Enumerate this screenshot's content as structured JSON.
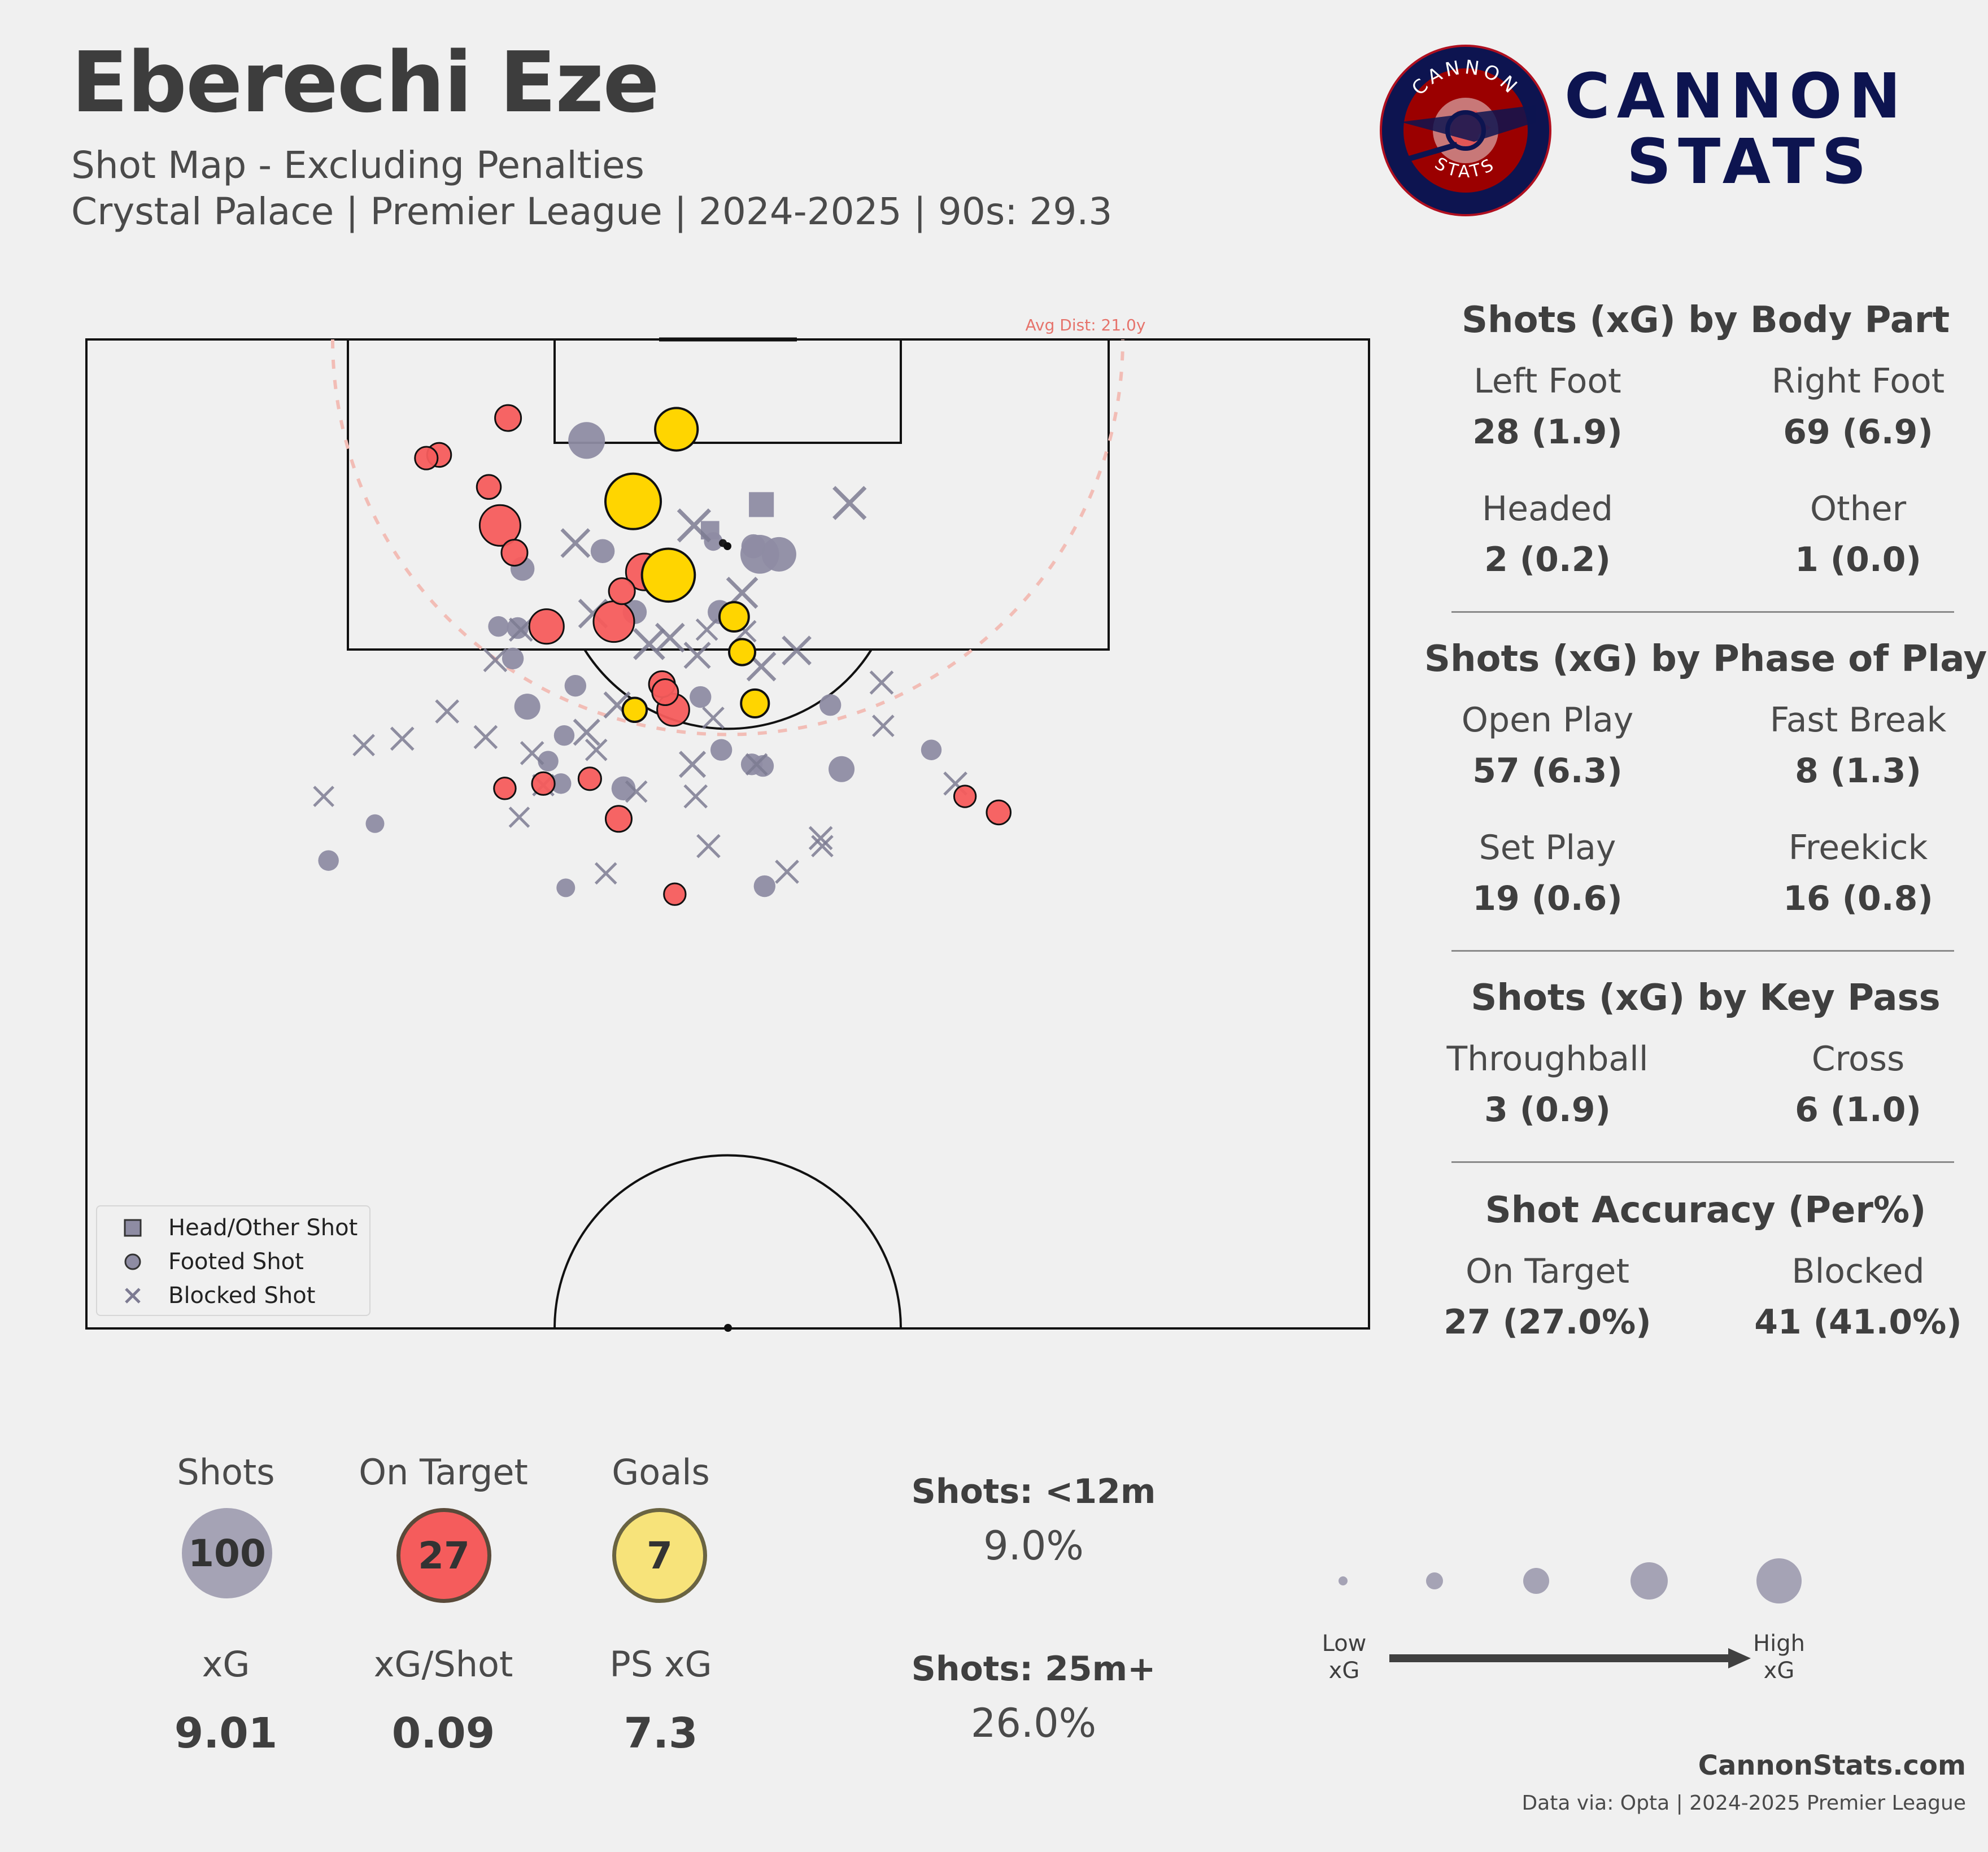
{
  "header": {
    "title": "Eberechi Eze",
    "subtitle": "Shot Map - Excluding Penalties",
    "info": "Crystal Palace | Premier League | 2024-2025 | 90s: 29.3"
  },
  "brand": {
    "logo_ring_top": "CANNON",
    "logo_ring_bottom": "STATS",
    "line1": "CANNON",
    "line2": "STATS"
  },
  "colors": {
    "background": "#f0f0f0",
    "shot": "#8e8ca3",
    "on_target": "#f55c5c",
    "goal": "#ffd500",
    "avg_dist": "#e6736b",
    "brand_navy": "#0d1450",
    "brand_red": "#9b0000"
  },
  "avg_dist_label": "Avg Dist: 21.0y",
  "legend": [
    {
      "label": "Head/Other Shot",
      "icon": "square-marker-icon"
    },
    {
      "label": "Footed Shot",
      "icon": "circle-marker-icon"
    },
    {
      "label": "Blocked Shot",
      "icon": "x-marker-icon"
    }
  ],
  "panels": [
    {
      "title": "Shots (xG) by Body Part",
      "items": [
        {
          "label": "Left Foot",
          "value": "28 (1.9)"
        },
        {
          "label": "Right Foot",
          "value": "69 (6.9)"
        },
        {
          "label": "Headed",
          "value": "2 (0.2)"
        },
        {
          "label": "Other",
          "value": "1 (0.0)"
        }
      ]
    },
    {
      "title": "Shots (xG) by Phase of Play",
      "items": [
        {
          "label": "Open Play",
          "value": "57 (6.3)"
        },
        {
          "label": "Fast Break",
          "value": "8 (1.3)"
        },
        {
          "label": "Set Play",
          "value": "19 (0.6)"
        },
        {
          "label": "Freekick",
          "value": "16 (0.8)"
        }
      ]
    },
    {
      "title": "Shots (xG) by Key Pass",
      "items": [
        {
          "label": "Throughball",
          "value": "3 (0.9)"
        },
        {
          "label": "Cross",
          "value": "6 (1.0)"
        }
      ]
    },
    {
      "title": "Shot Accuracy (Per%)",
      "items": [
        {
          "label": "On Target",
          "value": "27 (27.0%)"
        },
        {
          "label": "Blocked",
          "value": "41 (41.0%)"
        }
      ]
    }
  ],
  "bottom_stats": {
    "top": [
      {
        "label": "Shots",
        "value": "100",
        "color": "#a5a3b5"
      },
      {
        "label": "On Target",
        "value": "27",
        "color": "#f55c5c"
      },
      {
        "label": "Goals",
        "value": "7",
        "color": "#f7e37a"
      }
    ],
    "bottom": [
      {
        "label": "xG",
        "value": "9.01"
      },
      {
        "label": "xG/Shot",
        "value": "0.09"
      },
      {
        "label": "PS xG",
        "value": "7.3"
      }
    ]
  },
  "distance_stats": [
    {
      "label": "Shots: <12m",
      "value": "9.0%"
    },
    {
      "label": "Shots: 25m+",
      "value": "26.0%"
    }
  ],
  "size_legend": {
    "low": "Low\nxG",
    "high": "High\nxG"
  },
  "footer": {
    "site": "CannonStats.com",
    "source": "Data via: Opta | 2024-2025 Premier League"
  },
  "chart_data": {
    "type": "scatter",
    "description_units": "x = pitch width (0-80), y = distance from goal line (0-60), xg = expected goals",
    "avg_distance": 21.0,
    "shots": [
      {
        "x": 34.1,
        "y": 10.1,
        "xg": 0.18,
        "outcome": "goal",
        "body": "foot"
      },
      {
        "x": 36.8,
        "y": 5.6,
        "xg": 0.09,
        "outcome": "goal",
        "body": "foot"
      },
      {
        "x": 36.3,
        "y": 14.7,
        "xg": 0.16,
        "outcome": "goal",
        "body": "foot"
      },
      {
        "x": 40.4,
        "y": 17.3,
        "xg": 0.03,
        "outcome": "goal",
        "body": "foot"
      },
      {
        "x": 40.9,
        "y": 19.5,
        "xg": 0.02,
        "outcome": "goal",
        "body": "foot"
      },
      {
        "x": 41.7,
        "y": 22.7,
        "xg": 0.025,
        "outcome": "goal",
        "body": "foot"
      },
      {
        "x": 34.2,
        "y": 23.1,
        "xg": 0.015,
        "outcome": "goal",
        "body": "foot"
      },
      {
        "x": 26.3,
        "y": 4.9,
        "xg": 0.02,
        "outcome": "on_target",
        "body": "foot"
      },
      {
        "x": 22.0,
        "y": 7.2,
        "xg": 0.015,
        "outcome": "on_target",
        "body": "foot"
      },
      {
        "x": 21.2,
        "y": 7.4,
        "xg": 0.012,
        "outcome": "on_target",
        "body": "foot"
      },
      {
        "x": 25.1,
        "y": 9.2,
        "xg": 0.015,
        "outcome": "on_target",
        "body": "foot"
      },
      {
        "x": 25.8,
        "y": 11.6,
        "xg": 0.08,
        "outcome": "on_target",
        "body": "foot"
      },
      {
        "x": 26.7,
        "y": 13.3,
        "xg": 0.02,
        "outcome": "on_target",
        "body": "foot"
      },
      {
        "x": 34.8,
        "y": 14.5,
        "xg": 0.06,
        "outcome": "on_target",
        "body": "foot"
      },
      {
        "x": 33.4,
        "y": 15.7,
        "xg": 0.02,
        "outcome": "on_target",
        "body": "foot"
      },
      {
        "x": 32.9,
        "y": 17.6,
        "xg": 0.08,
        "outcome": "on_target",
        "body": "foot"
      },
      {
        "x": 28.7,
        "y": 17.9,
        "xg": 0.05,
        "outcome": "on_target",
        "body": "foot"
      },
      {
        "x": 35.9,
        "y": 21.5,
        "xg": 0.02,
        "outcome": "on_target",
        "body": "foot"
      },
      {
        "x": 36.1,
        "y": 22.0,
        "xg": 0.02,
        "outcome": "on_target",
        "body": "foot"
      },
      {
        "x": 36.6,
        "y": 23.1,
        "xg": 0.04,
        "outcome": "on_target",
        "body": "foot"
      },
      {
        "x": 31.4,
        "y": 27.4,
        "xg": 0.012,
        "outcome": "on_target",
        "body": "foot"
      },
      {
        "x": 28.5,
        "y": 27.7,
        "xg": 0.012,
        "outcome": "on_target",
        "body": "foot"
      },
      {
        "x": 26.1,
        "y": 28.0,
        "xg": 0.01,
        "outcome": "on_target",
        "body": "foot"
      },
      {
        "x": 33.2,
        "y": 29.9,
        "xg": 0.02,
        "outcome": "on_target",
        "body": "foot"
      },
      {
        "x": 36.7,
        "y": 34.6,
        "xg": 0.01,
        "outcome": "on_target",
        "body": "foot"
      },
      {
        "x": 54.8,
        "y": 28.5,
        "xg": 0.01,
        "outcome": "on_target",
        "body": "foot"
      },
      {
        "x": 56.9,
        "y": 29.5,
        "xg": 0.015,
        "outcome": "on_target",
        "body": "foot"
      },
      {
        "x": 31.2,
        "y": 6.3,
        "xg": 0.06,
        "outcome": "off_target",
        "body": "foot"
      },
      {
        "x": 42.0,
        "y": 13.4,
        "xg": 0.07,
        "outcome": "off_target",
        "body": "foot"
      },
      {
        "x": 43.2,
        "y": 13.4,
        "xg": 0.05,
        "outcome": "off_target",
        "body": "foot"
      },
      {
        "x": 32.2,
        "y": 13.2,
        "xg": 0.015,
        "outcome": "off_target",
        "body": "foot"
      },
      {
        "x": 27.2,
        "y": 14.3,
        "xg": 0.015,
        "outcome": "off_target",
        "body": "foot"
      },
      {
        "x": 34.2,
        "y": 17.0,
        "xg": 0.015,
        "outcome": "off_target",
        "body": "foot"
      },
      {
        "x": 39.5,
        "y": 17.0,
        "xg": 0.015,
        "outcome": "off_target",
        "body": "foot"
      },
      {
        "x": 26.9,
        "y": 18.0,
        "xg": 0.01,
        "outcome": "off_target",
        "body": "foot"
      },
      {
        "x": 26.6,
        "y": 19.9,
        "xg": 0.01,
        "outcome": "off_target",
        "body": "foot"
      },
      {
        "x": 27.5,
        "y": 22.9,
        "xg": 0.02,
        "outcome": "off_target",
        "body": "foot"
      },
      {
        "x": 38.3,
        "y": 22.3,
        "xg": 0.01,
        "outcome": "off_target",
        "body": "foot"
      },
      {
        "x": 46.4,
        "y": 22.8,
        "xg": 0.01,
        "outcome": "off_target",
        "body": "foot"
      },
      {
        "x": 28.8,
        "y": 26.3,
        "xg": 0.008,
        "outcome": "off_target",
        "body": "foot"
      },
      {
        "x": 39.6,
        "y": 25.6,
        "xg": 0.01,
        "outcome": "off_target",
        "body": "foot"
      },
      {
        "x": 41.5,
        "y": 26.5,
        "xg": 0.01,
        "outcome": "off_target",
        "body": "foot"
      },
      {
        "x": 47.1,
        "y": 26.8,
        "xg": 0.02,
        "outcome": "off_target",
        "body": "foot"
      },
      {
        "x": 52.7,
        "y": 25.6,
        "xg": 0.008,
        "outcome": "off_target",
        "body": "foot"
      },
      {
        "x": 33.5,
        "y": 28.0,
        "xg": 0.015,
        "outcome": "off_target",
        "body": "foot"
      },
      {
        "x": 18.0,
        "y": 30.2,
        "xg": 0.005,
        "outcome": "off_target",
        "body": "foot"
      },
      {
        "x": 15.1,
        "y": 32.5,
        "xg": 0.008,
        "outcome": "off_target",
        "body": "foot"
      },
      {
        "x": 29.9,
        "y": 34.2,
        "xg": 0.005,
        "outcome": "off_target",
        "body": "foot"
      },
      {
        "x": 42.3,
        "y": 34.1,
        "xg": 0.01,
        "outcome": "off_target",
        "body": "foot"
      },
      {
        "x": 29.8,
        "y": 24.7,
        "xg": 0.008,
        "outcome": "off_target",
        "body": "foot"
      },
      {
        "x": 30.5,
        "y": 21.6,
        "xg": 0.01,
        "outcome": "off_target",
        "body": "foot"
      },
      {
        "x": 25.7,
        "y": 17.9,
        "xg": 0.008,
        "outcome": "off_target",
        "body": "foot"
      },
      {
        "x": 29.6,
        "y": 27.7,
        "xg": 0.008,
        "outcome": "off_target",
        "body": "foot"
      },
      {
        "x": 41.6,
        "y": 12.9,
        "xg": 0.015,
        "outcome": "off_target",
        "body": "foot"
      },
      {
        "x": 39.1,
        "y": 12.6,
        "xg": 0.005,
        "outcome": "off_target",
        "body": "foot"
      },
      {
        "x": 42.2,
        "y": 26.6,
        "xg": 0.01,
        "outcome": "off_target",
        "body": "foot"
      },
      {
        "x": 42.1,
        "y": 10.3,
        "xg": 0.03,
        "outcome": "off_target",
        "body": "head"
      },
      {
        "x": 38.9,
        "y": 11.9,
        "xg": 0.01,
        "outcome": "off_target",
        "body": "head"
      },
      {
        "x": 39.7,
        "y": 12.7,
        "xg": 0.002,
        "outcome": "on_target",
        "body": "head"
      },
      {
        "x": 37.9,
        "y": 11.6,
        "xg": 0.06,
        "outcome": "blocked",
        "body": "foot"
      },
      {
        "x": 30.5,
        "y": 12.7,
        "xg": 0.04,
        "outcome": "blocked",
        "body": "foot"
      },
      {
        "x": 47.6,
        "y": 10.2,
        "xg": 0.06,
        "outcome": "blocked",
        "body": "foot"
      },
      {
        "x": 40.9,
        "y": 15.8,
        "xg": 0.05,
        "outcome": "blocked",
        "body": "foot"
      },
      {
        "x": 31.6,
        "y": 17.1,
        "xg": 0.04,
        "outcome": "blocked",
        "body": "foot"
      },
      {
        "x": 36.4,
        "y": 18.6,
        "xg": 0.04,
        "outcome": "blocked",
        "body": "foot"
      },
      {
        "x": 35.1,
        "y": 19.0,
        "xg": 0.05,
        "outcome": "blocked",
        "body": "foot"
      },
      {
        "x": 44.3,
        "y": 19.4,
        "xg": 0.04,
        "outcome": "blocked",
        "body": "foot"
      },
      {
        "x": 38.1,
        "y": 19.7,
        "xg": 0.03,
        "outcome": "blocked",
        "body": "foot"
      },
      {
        "x": 42.1,
        "y": 20.4,
        "xg": 0.04,
        "outcome": "blocked",
        "body": "foot"
      },
      {
        "x": 38.7,
        "y": 18.1,
        "xg": 0.015,
        "outcome": "blocked",
        "body": "foot"
      },
      {
        "x": 41.1,
        "y": 18.2,
        "xg": 0.015,
        "outcome": "blocked",
        "body": "foot"
      },
      {
        "x": 27.1,
        "y": 18.1,
        "xg": 0.02,
        "outcome": "blocked",
        "body": "foot"
      },
      {
        "x": 25.5,
        "y": 20.0,
        "xg": 0.02,
        "outcome": "blocked",
        "body": "foot"
      },
      {
        "x": 33.1,
        "y": 22.8,
        "xg": 0.03,
        "outcome": "blocked",
        "body": "foot"
      },
      {
        "x": 39.1,
        "y": 23.6,
        "xg": 0.015,
        "outcome": "blocked",
        "body": "foot"
      },
      {
        "x": 49.6,
        "y": 21.4,
        "xg": 0.02,
        "outcome": "blocked",
        "body": "foot"
      },
      {
        "x": 22.5,
        "y": 23.2,
        "xg": 0.02,
        "outcome": "blocked",
        "body": "foot"
      },
      {
        "x": 31.2,
        "y": 24.5,
        "xg": 0.03,
        "outcome": "blocked",
        "body": "foot"
      },
      {
        "x": 19.7,
        "y": 24.9,
        "xg": 0.02,
        "outcome": "blocked",
        "body": "foot"
      },
      {
        "x": 24.9,
        "y": 24.8,
        "xg": 0.02,
        "outcome": "blocked",
        "body": "foot"
      },
      {
        "x": 27.8,
        "y": 25.8,
        "xg": 0.02,
        "outcome": "blocked",
        "body": "foot"
      },
      {
        "x": 31.8,
        "y": 25.6,
        "xg": 0.015,
        "outcome": "blocked",
        "body": "foot"
      },
      {
        "x": 49.7,
        "y": 24.1,
        "xg": 0.015,
        "outcome": "blocked",
        "body": "foot"
      },
      {
        "x": 37.8,
        "y": 26.5,
        "xg": 0.03,
        "outcome": "blocked",
        "body": "foot"
      },
      {
        "x": 41.8,
        "y": 26.5,
        "xg": 0.015,
        "outcome": "blocked",
        "body": "foot"
      },
      {
        "x": 17.3,
        "y": 25.3,
        "xg": 0.015,
        "outcome": "blocked",
        "body": "foot"
      },
      {
        "x": 28.5,
        "y": 27.8,
        "xg": 0.015,
        "outcome": "blocked",
        "body": "foot"
      },
      {
        "x": 34.3,
        "y": 28.2,
        "xg": 0.015,
        "outcome": "blocked",
        "body": "foot"
      },
      {
        "x": 38.0,
        "y": 28.5,
        "xg": 0.02,
        "outcome": "blocked",
        "body": "foot"
      },
      {
        "x": 14.8,
        "y": 28.5,
        "xg": 0.012,
        "outcome": "blocked",
        "body": "foot"
      },
      {
        "x": 54.2,
        "y": 27.7,
        "xg": 0.02,
        "outcome": "blocked",
        "body": "foot"
      },
      {
        "x": 27.0,
        "y": 29.8,
        "xg": 0.012,
        "outcome": "blocked",
        "body": "foot"
      },
      {
        "x": 38.8,
        "y": 31.6,
        "xg": 0.02,
        "outcome": "blocked",
        "body": "foot"
      },
      {
        "x": 45.8,
        "y": 31.1,
        "xg": 0.02,
        "outcome": "blocked",
        "body": "foot"
      },
      {
        "x": 45.9,
        "y": 31.6,
        "xg": 0.015,
        "outcome": "blocked",
        "body": "foot"
      },
      {
        "x": 32.4,
        "y": 33.3,
        "xg": 0.015,
        "outcome": "blocked",
        "body": "foot"
      },
      {
        "x": 43.7,
        "y": 33.2,
        "xg": 0.02,
        "outcome": "blocked",
        "body": "foot"
      }
    ]
  }
}
